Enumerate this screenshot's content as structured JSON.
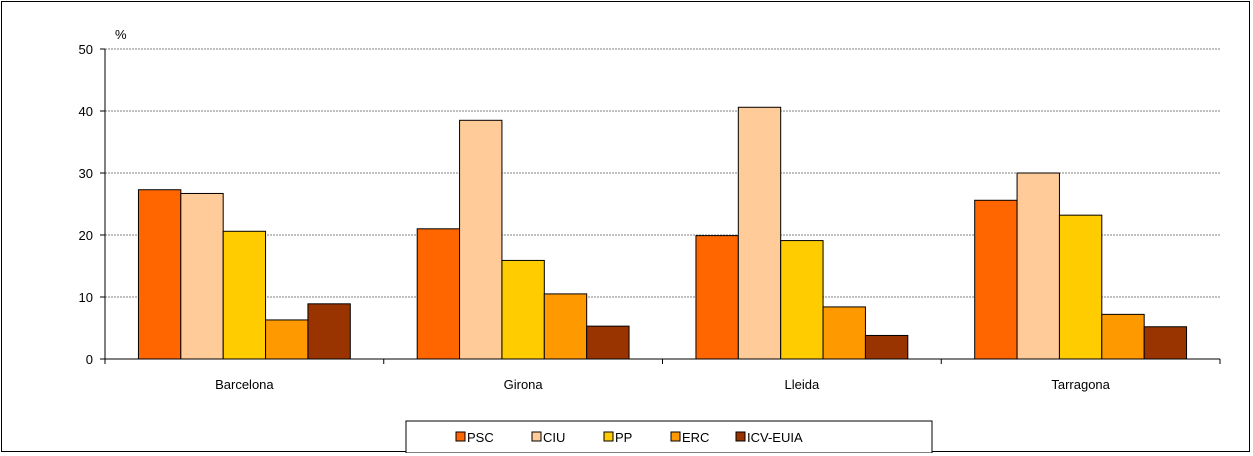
{
  "chart_data": {
    "type": "bar",
    "title": "",
    "ylabel": "%",
    "xlabel": "",
    "ylim": [
      0,
      50
    ],
    "yticks": [
      0,
      10,
      20,
      30,
      40,
      50
    ],
    "grid": true,
    "legend_position": "bottom",
    "categories": [
      "Barcelona",
      "Girona",
      "Lleida",
      "Tarragona"
    ],
    "series": [
      {
        "name": "PSC",
        "color": "#FF6600",
        "values": [
          27.3,
          21.0,
          19.9,
          25.6
        ]
      },
      {
        "name": "CIU",
        "color": "#FFCC99",
        "values": [
          26.7,
          38.5,
          40.6,
          30.0
        ]
      },
      {
        "name": "PP",
        "color": "#FFCC00",
        "values": [
          20.6,
          15.9,
          19.1,
          23.2
        ]
      },
      {
        "name": "ERC",
        "color": "#FF9900",
        "values": [
          6.3,
          10.5,
          8.4,
          7.2
        ]
      },
      {
        "name": "ICV-EUIA",
        "color": "#993300",
        "values": [
          8.9,
          5.3,
          3.8,
          5.2
        ]
      }
    ]
  }
}
